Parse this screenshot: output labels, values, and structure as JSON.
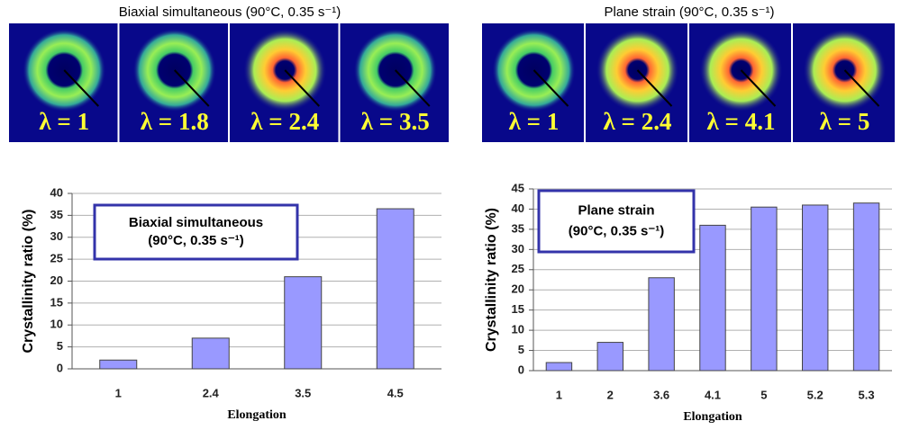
{
  "panels": [
    {
      "title": "Biaxial simultaneous (90°C, 0.35 s⁻¹)",
      "labels": [
        "λ = 1",
        "λ = 1.8",
        "λ = 2.4",
        "λ = 3.5"
      ]
    },
    {
      "title": "Plane strain (90°C, 0.35 s⁻¹)",
      "labels": [
        "λ = 1",
        "λ = 2.4",
        "λ = 4.1",
        "λ = 5"
      ]
    }
  ],
  "chart_data": [
    {
      "type": "bar",
      "annotation": [
        "Biaxial simultaneous",
        "(90°C, 0.35 s⁻¹)"
      ],
      "x_label": "Elongation",
      "y_label": "Crystallinity ratio (%)",
      "categories": [
        "1",
        "2.4",
        "3.5",
        "4.5"
      ],
      "values": [
        2,
        7,
        21,
        36.5
      ],
      "color": "#9999ff",
      "ylim": [
        0,
        40
      ],
      "yticks": [
        0,
        5,
        10,
        15,
        20,
        25,
        30,
        35,
        40
      ],
      "grid": true
    },
    {
      "type": "bar",
      "annotation": [
        "Plane strain",
        "(90°C, 0.35 s⁻¹)"
      ],
      "x_label": "Elongation",
      "y_label": "Crystallinity ratio (%)",
      "categories": [
        "1",
        "2",
        "3.6",
        "4.1",
        "5",
        "5.2",
        "5.3"
      ],
      "values": [
        2,
        7,
        23,
        36,
        40.5,
        41,
        41.5
      ],
      "color": "#9999ff",
      "ylim": [
        0,
        45
      ],
      "yticks": [
        0,
        5,
        10,
        15,
        20,
        25,
        30,
        35,
        40,
        45
      ],
      "grid": true
    }
  ]
}
